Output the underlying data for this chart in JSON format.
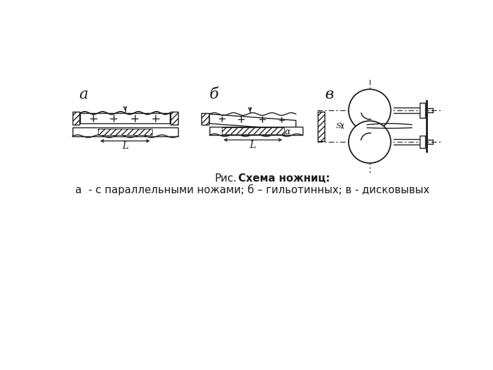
{
  "title_prefix": "Рис.",
  "title_bold": "  Схема ножниц:",
  "subtitle": "а  - с параллельными ножами; б – гильотинных; в - дисковывых",
  "label_a": "а",
  "label_b": "б",
  "label_v": "в",
  "label_L": "L",
  "label_alpha": "α",
  "label_S": "S",
  "bg_color": "#ffffff",
  "line_color": "#1a1a1a",
  "title_fontsize": 11,
  "subtitle_fontsize": 11
}
